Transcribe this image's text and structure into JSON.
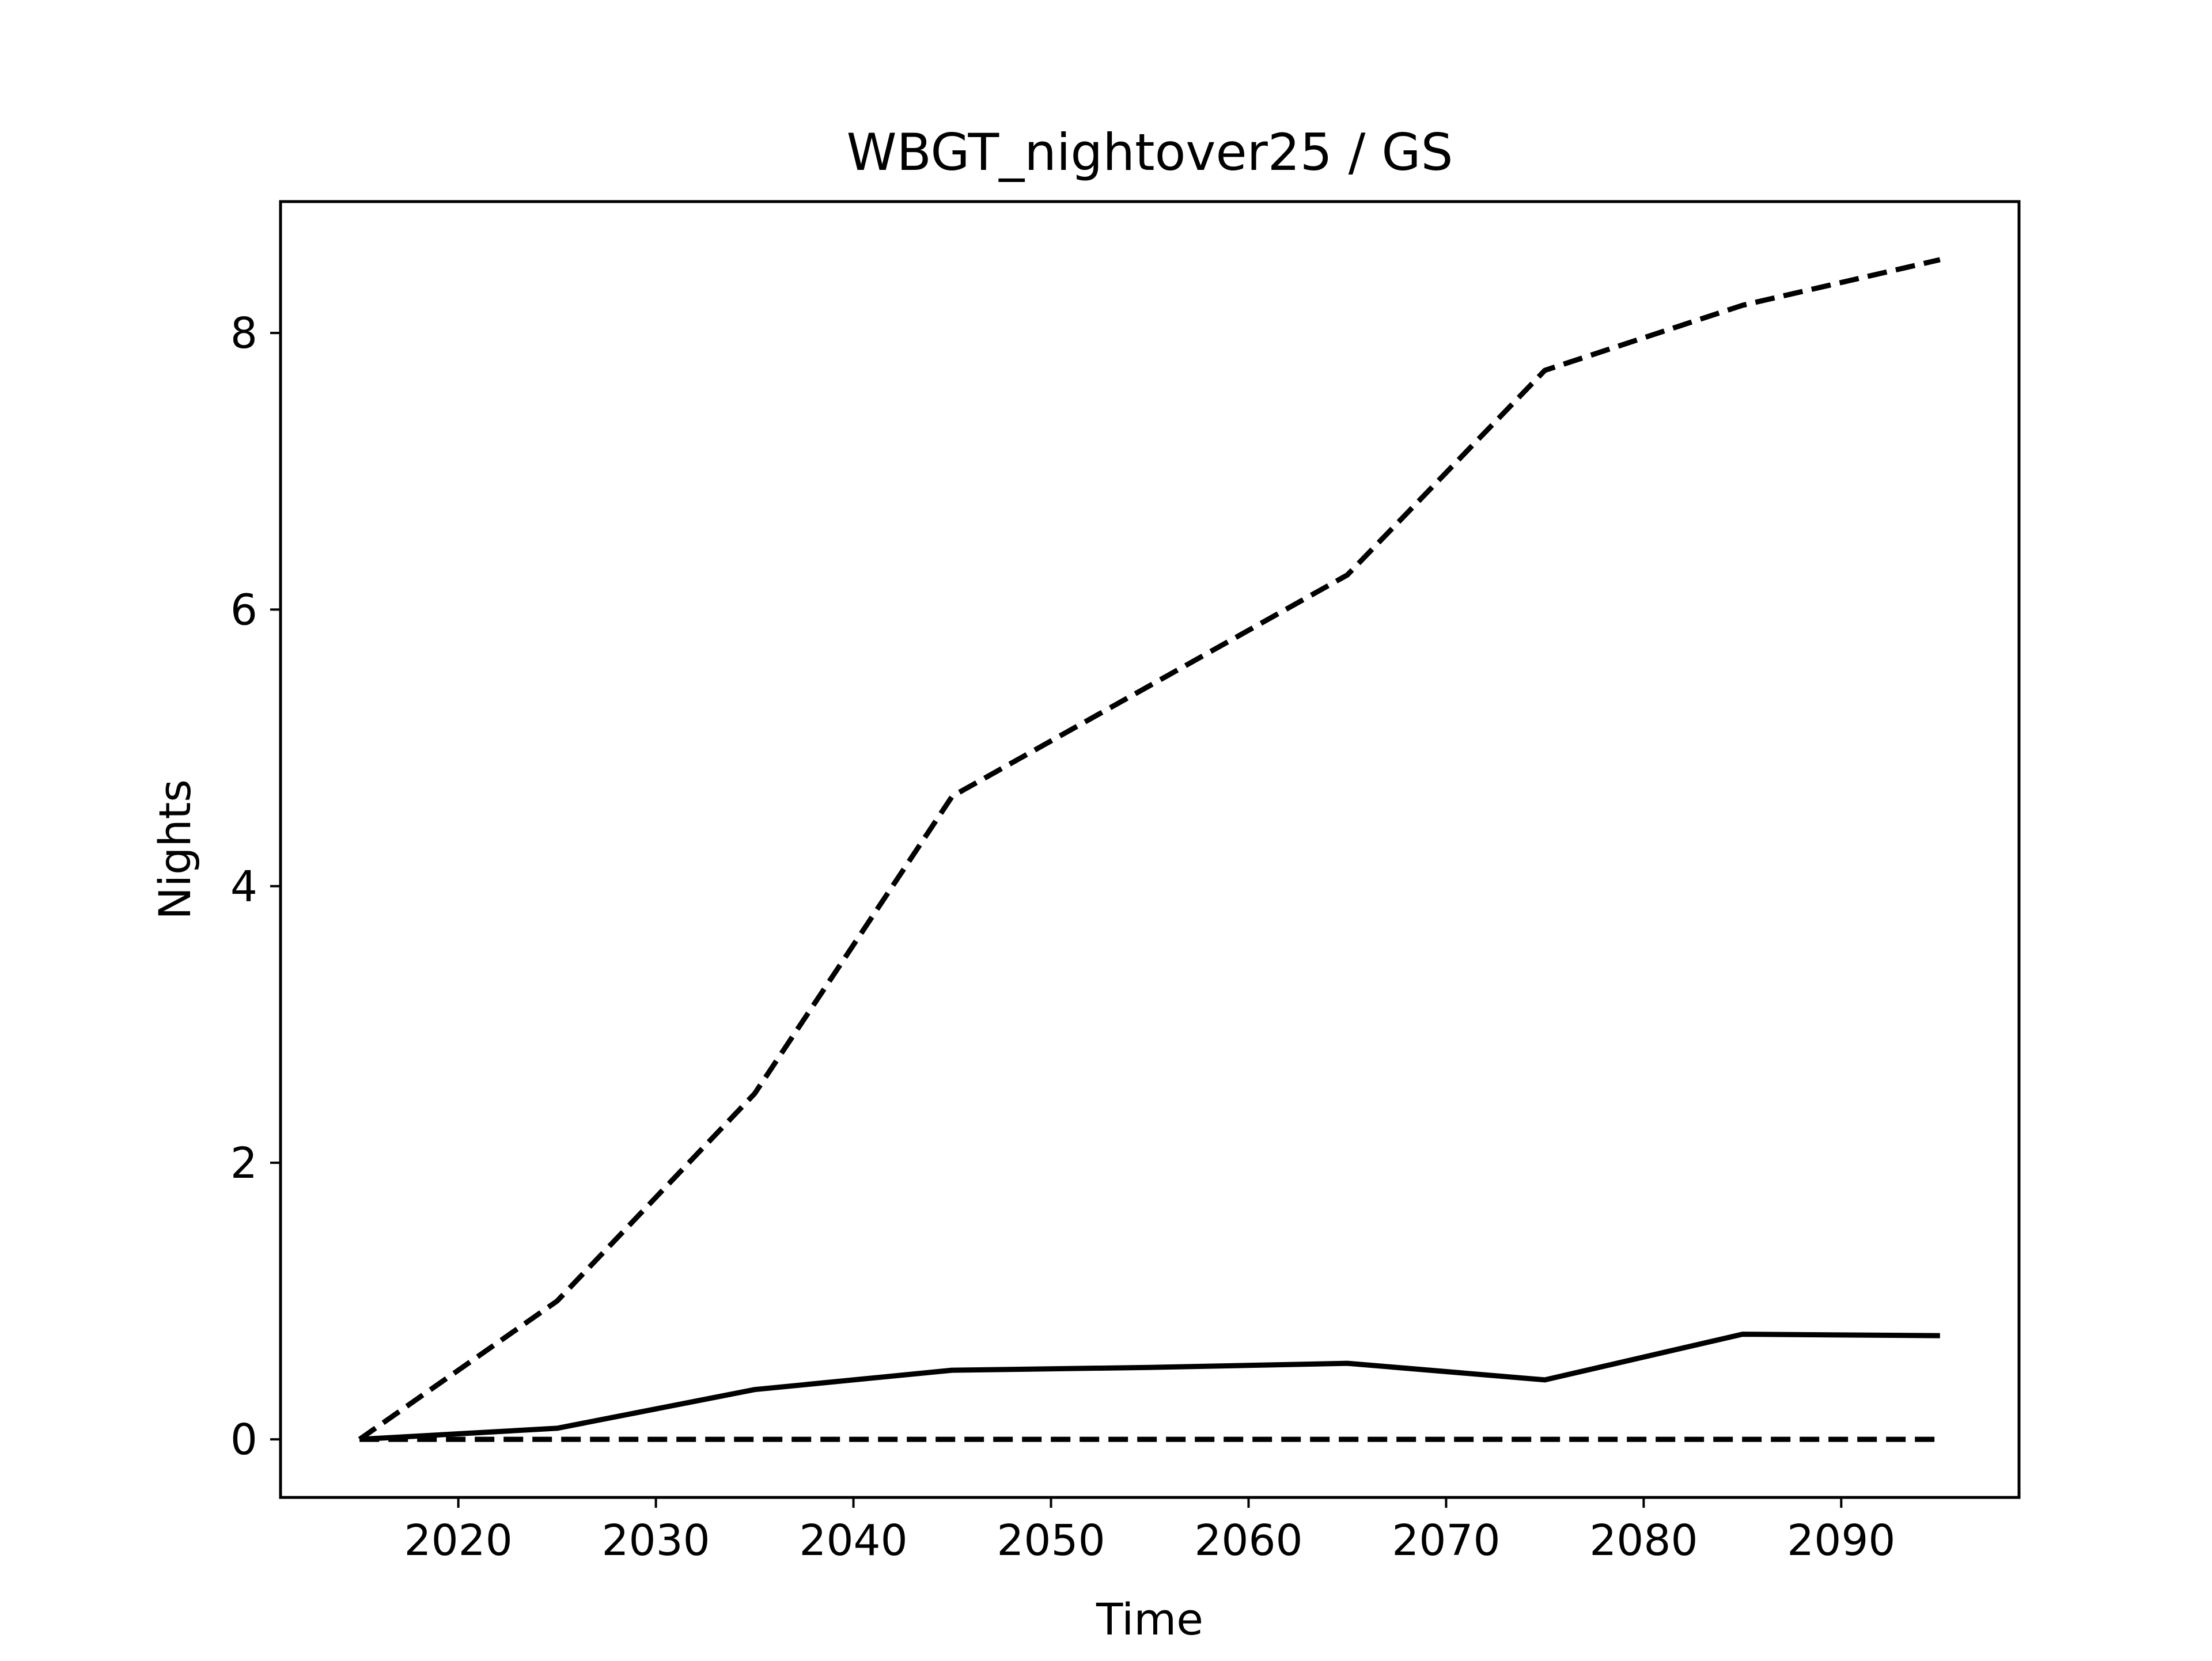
{
  "chart_data": {
    "type": "line",
    "title": "WBGT_nightover25 / GS",
    "xlabel": "Time",
    "ylabel": "Nights",
    "xlim": [
      2011,
      2099
    ],
    "ylim": [
      -0.42,
      8.95
    ],
    "xticks": [
      2020,
      2030,
      2040,
      2050,
      2060,
      2070,
      2080,
      2090
    ],
    "yticks": [
      0,
      2,
      4,
      6,
      8
    ],
    "grid": false,
    "legend": "none",
    "x": [
      2015,
      2025,
      2035,
      2045,
      2055,
      2065,
      2075,
      2085,
      2095
    ],
    "series": [
      {
        "style": "dashed",
        "color": "#000000",
        "values": [
          0.0,
          1.0,
          2.5,
          4.65,
          5.45,
          6.25,
          7.73,
          8.2,
          8.53
        ]
      },
      {
        "style": "solid",
        "color": "#000000",
        "values": [
          0.0,
          0.08,
          0.36,
          0.5,
          0.52,
          0.55,
          0.43,
          0.76,
          0.75
        ]
      },
      {
        "style": "dashed",
        "color": "#000000",
        "values": [
          0.0,
          0.0,
          0.0,
          0.0,
          0.0,
          0.0,
          0.0,
          0.0,
          0.0
        ]
      }
    ]
  }
}
